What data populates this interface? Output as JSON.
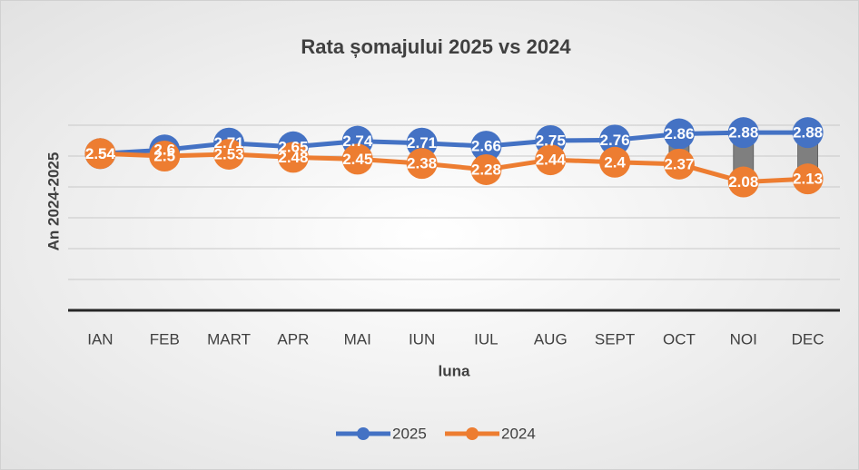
{
  "chart_data": {
    "type": "line",
    "title": "Rata șomajului 2025 vs 2024",
    "x_label": "luna",
    "y_label": "An 2024-2025",
    "categories": [
      "IAN",
      "FEB",
      "MART",
      "APR",
      "MAI",
      "IUN",
      "IUL",
      "AUG",
      "SEPT",
      "OCT",
      "NOI",
      "DEC"
    ],
    "series": [
      {
        "name": "2025",
        "color": "#4472c4",
        "values": [
          2.54,
          2.6,
          2.71,
          2.65,
          2.74,
          2.71,
          2.66,
          2.75,
          2.76,
          2.86,
          2.88,
          2.88
        ]
      },
      {
        "name": "2024",
        "color": "#ed7d31",
        "values": [
          2.54,
          2.5,
          2.53,
          2.48,
          2.45,
          2.38,
          2.28,
          2.44,
          2.4,
          2.37,
          2.08,
          2.13
        ]
      }
    ],
    "ylim": [
      0,
      3
    ],
    "yticks": [
      0,
      0.5,
      1,
      1.5,
      2,
      2.5,
      3
    ],
    "grid": true,
    "up_down_bars": true,
    "legend": "bottom"
  }
}
